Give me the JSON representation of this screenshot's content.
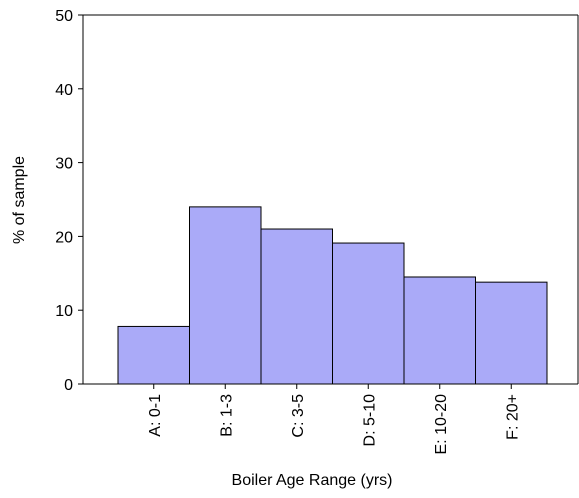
{
  "chart_data": {
    "type": "bar",
    "x_label": "Boiler Age Range (yrs)",
    "y_label": "% of sample",
    "categories": [
      "A: 0-1",
      "B: 1-3",
      "C: 3-5",
      "D: 5-10",
      "E: 10-20",
      "F: 20+"
    ],
    "values": [
      7.8,
      24,
      21,
      19.1,
      14.5,
      13.8
    ],
    "color": "#aaaaf8",
    "ylim": [
      0,
      50
    ],
    "yticks": [
      0,
      10,
      20,
      30,
      40,
      50
    ],
    "grid": false
  }
}
